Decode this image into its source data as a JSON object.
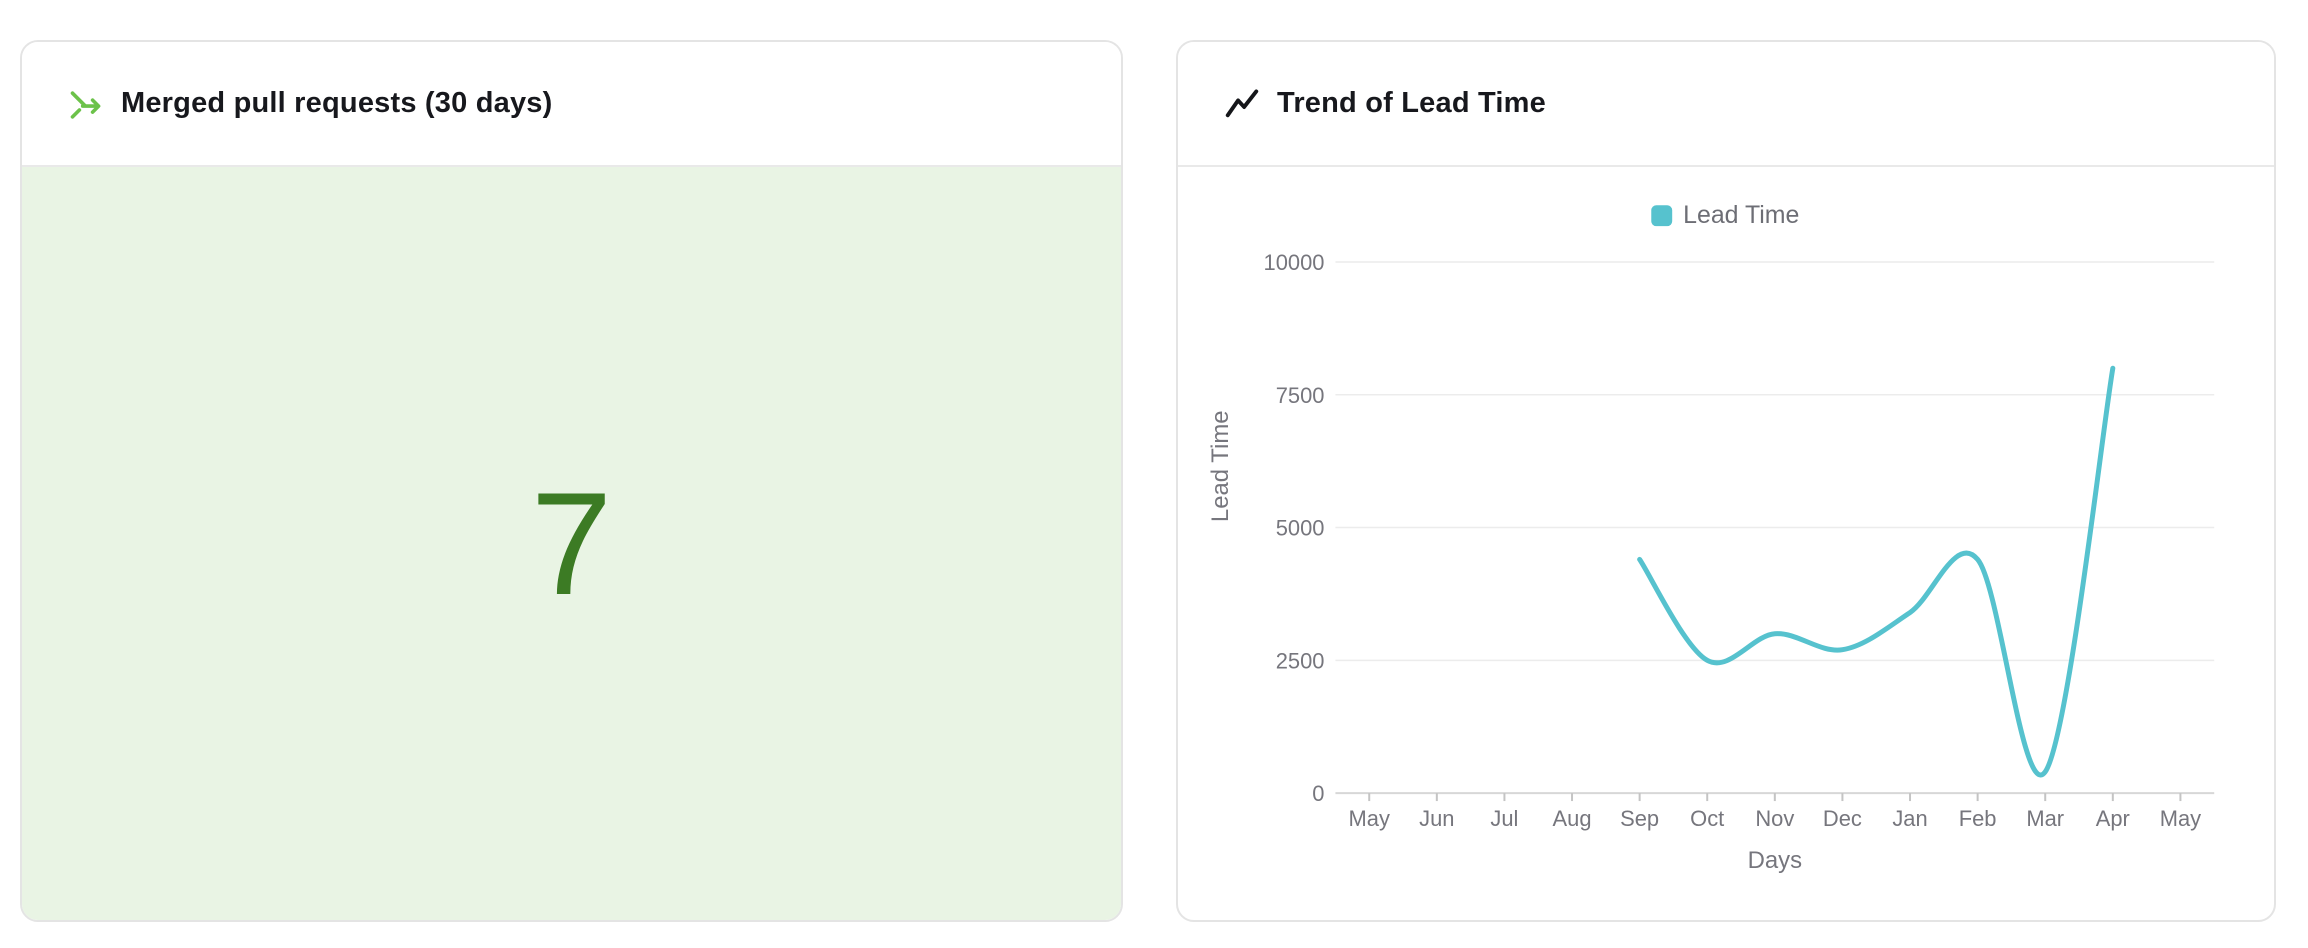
{
  "cards": {
    "merged_prs": {
      "title": "Merged pull requests (30 days)",
      "value": "7",
      "icon": "merge-icon",
      "icon_color": "#6cc24a",
      "value_color": "#3c7b24",
      "bg_color": "#e9f4e4"
    },
    "lead_time": {
      "title": "Trend of Lead Time",
      "icon": "trend-icon",
      "icon_color": "#15161a"
    }
  },
  "chart_data": {
    "type": "line",
    "title": "Trend of Lead Time",
    "categories": [
      "May",
      "Jun",
      "Jul",
      "Aug",
      "Sep",
      "Oct",
      "Nov",
      "Dec",
      "Jan",
      "Feb",
      "Mar",
      "Apr",
      "May"
    ],
    "series": [
      {
        "name": "Lead Time",
        "color": "#56c2ce",
        "values": [
          null,
          null,
          null,
          null,
          4400,
          2500,
          3000,
          2700,
          3400,
          4400,
          400,
          8000,
          null
        ]
      }
    ],
    "xlabel": "Days",
    "ylabel": "Lead Time",
    "ylim": [
      0,
      10000
    ],
    "yticks": [
      0,
      2500,
      5000,
      7500,
      10000
    ],
    "legend": {
      "position": "top",
      "items": [
        "Lead Time"
      ]
    },
    "grid": true,
    "smooth": true,
    "style": {
      "grid_color": "#ececec",
      "axis_line_color": "#d7d7d7",
      "tick_color": "#c4c4c4",
      "label_color": "#76767d",
      "legend_text_color": "#6d6e75"
    }
  }
}
